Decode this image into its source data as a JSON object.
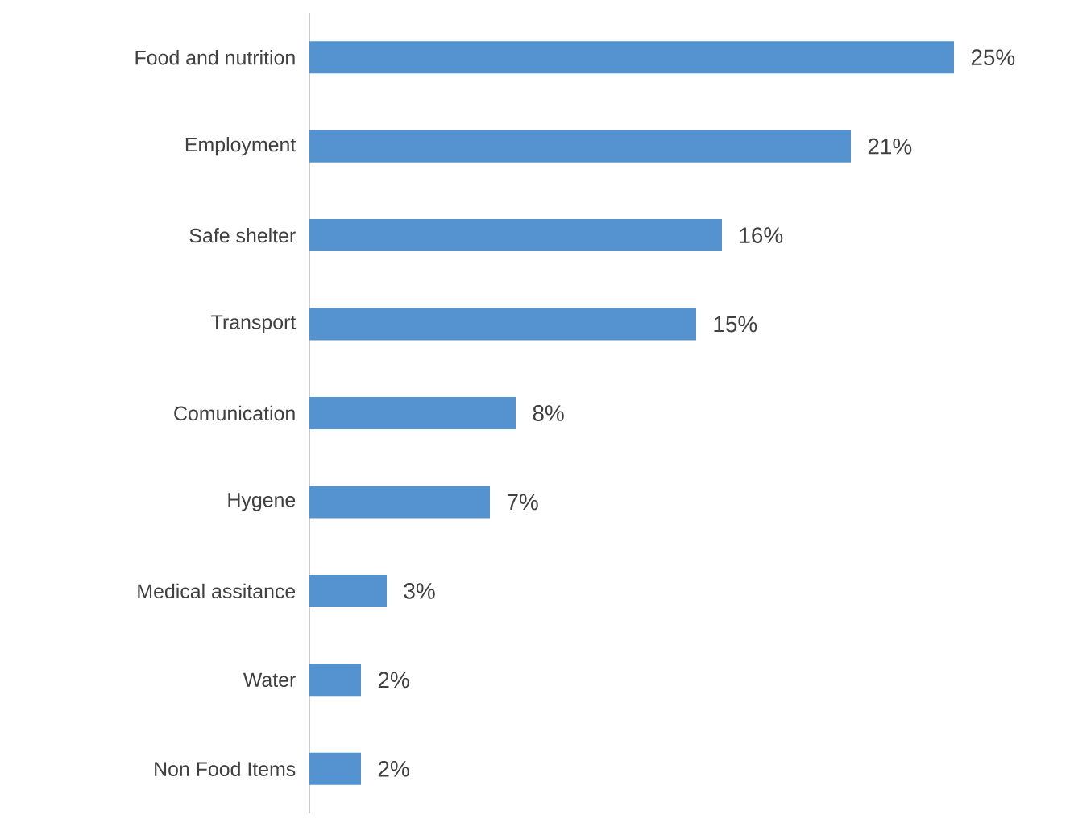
{
  "chart_data": {
    "type": "bar",
    "orientation": "horizontal",
    "categories": [
      "Food and nutrition",
      "Employment",
      "Safe shelter",
      "Transport",
      "Comunication",
      "Hygene",
      "Medical assitance",
      "Water",
      "Non Food Items"
    ],
    "values": [
      25,
      21,
      16,
      15,
      8,
      7,
      3,
      2,
      2
    ],
    "value_labels": [
      "25%",
      "21%",
      "16%",
      "15%",
      "8%",
      "7%",
      "3%",
      "2%",
      "2%"
    ],
    "color": "#5593d0"
  }
}
